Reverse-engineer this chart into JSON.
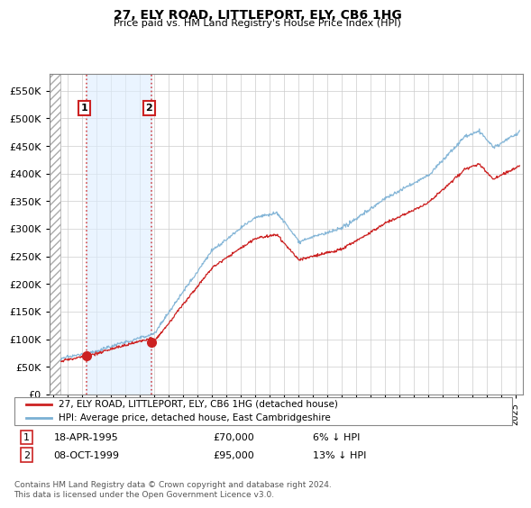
{
  "title": "27, ELY ROAD, LITTLEPORT, ELY, CB6 1HG",
  "subtitle": "Price paid vs. HM Land Registry's House Price Index (HPI)",
  "sale1_date": 1995.29,
  "sale1_price": 70000,
  "sale1_label": "1",
  "sale2_date": 1999.77,
  "sale2_price": 95000,
  "sale2_label": "2",
  "hpi_line_color": "#7ab0d4",
  "price_line_color": "#cc2222",
  "sale_dot_color": "#cc2222",
  "shade_color": "#ddeeff",
  "legend_label1": "27, ELY ROAD, LITTLEPORT, ELY, CB6 1HG (detached house)",
  "legend_label2": "HPI: Average price, detached house, East Cambridgeshire",
  "footer": "Contains HM Land Registry data © Crown copyright and database right 2024.\nThis data is licensed under the Open Government Licence v3.0.",
  "ylim_max": 580000,
  "ylim_ticks_max": 550000,
  "xmin": 1992.7,
  "xmax": 2025.5
}
